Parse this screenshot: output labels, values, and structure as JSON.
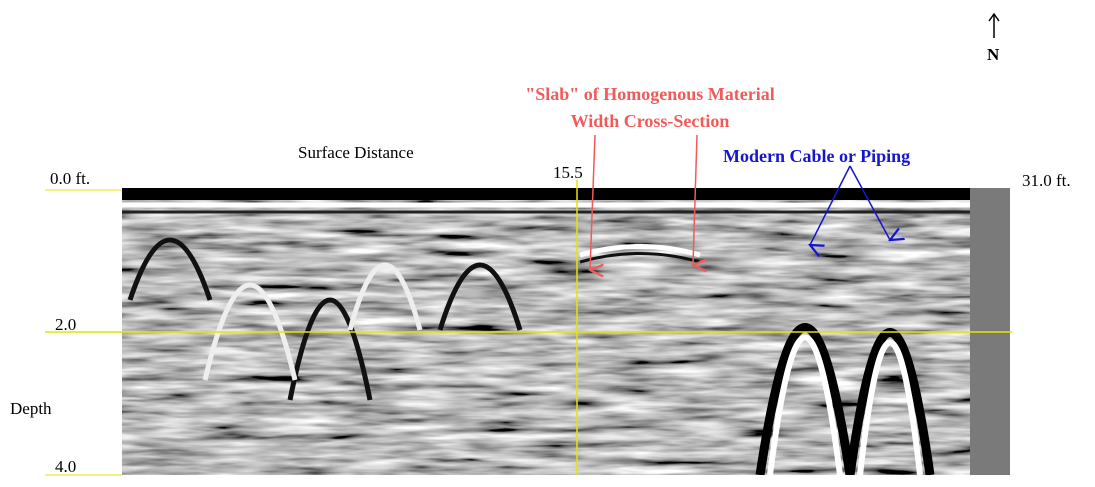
{
  "axes": {
    "x_title": "Surface Distance",
    "x_labels": [
      "0.0 ft.",
      "15.5",
      "31.0 ft."
    ],
    "y_title": "Depth",
    "y_labels": [
      "2.0",
      "4.0"
    ]
  },
  "annotations": {
    "slab": [
      "\"Slab\" of Homogenous Material",
      "Width Cross-Section"
    ],
    "cable": "Modern Cable or Piping"
  },
  "compass": "N"
}
